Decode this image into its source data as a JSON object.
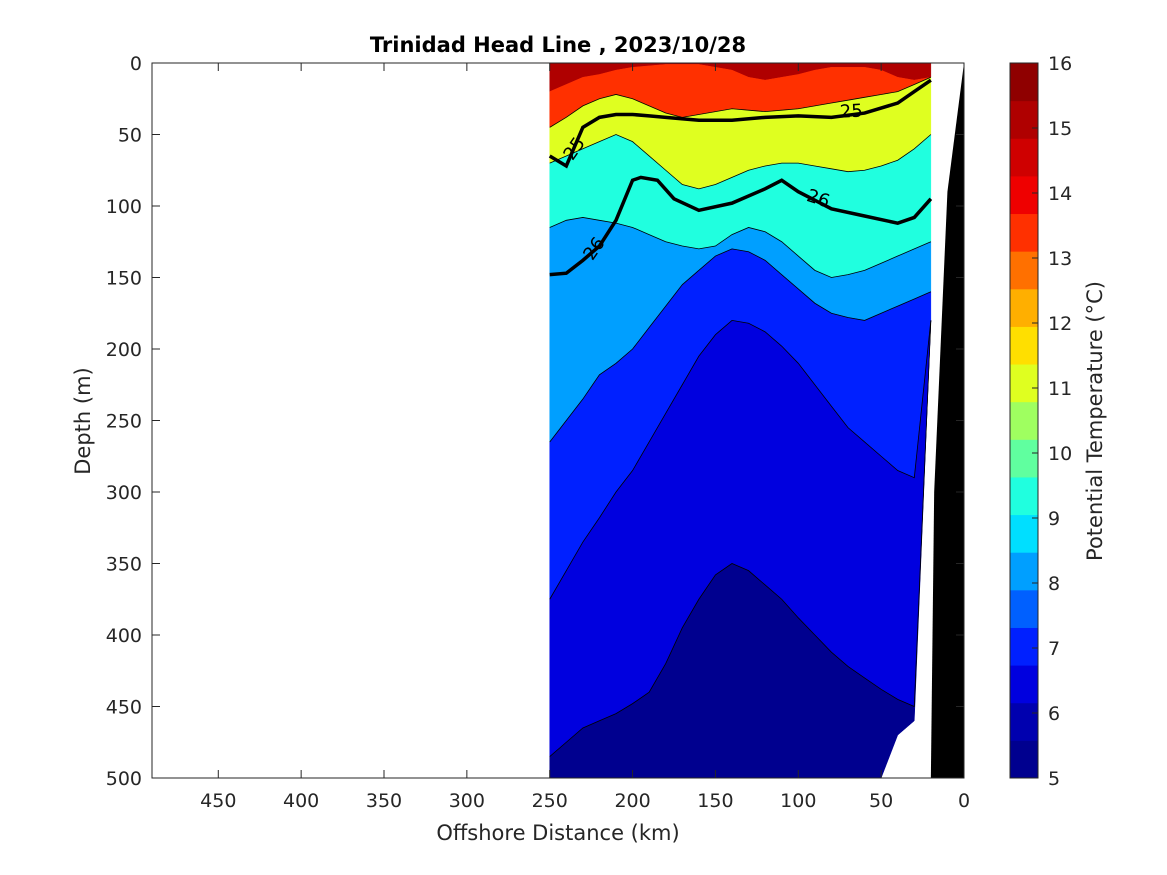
{
  "chart_data": {
    "type": "heatmap",
    "title": "Trinidad Head Line , 2023/10/28",
    "xlabel": "Offshore Distance (km)",
    "ylabel": "Depth (m)",
    "colorbar_label": "Potential Temperature (°C)",
    "x_reversed": true,
    "y_reversed": true,
    "xlim": [
      0,
      490
    ],
    "ylim": [
      0,
      500
    ],
    "xticks": [
      450,
      400,
      350,
      300,
      250,
      200,
      150,
      100,
      50,
      0
    ],
    "yticks": [
      0,
      50,
      100,
      150,
      200,
      250,
      300,
      350,
      400,
      450,
      500
    ],
    "colorbar_range": [
      5,
      16
    ],
    "colorbar_ticks": [
      5,
      6,
      7,
      8,
      9,
      10,
      11,
      12,
      13,
      14,
      15,
      16
    ],
    "colormap": [
      "#00008F",
      "#0000AF",
      "#0000DF",
      "#0020FF",
      "#0060FF",
      "#009FFF",
      "#00DFFF",
      "#20FFDF",
      "#60FF9F",
      "#9FFF60",
      "#DFFF20",
      "#FFDF00",
      "#FFAF00",
      "#FF7000",
      "#FF3000",
      "#EF0000",
      "#CF0000",
      "#AF0000",
      "#8F0000"
    ],
    "profile_distances": [
      250,
      240,
      230,
      220,
      210,
      200,
      190,
      180,
      170,
      160,
      150,
      140,
      130,
      120,
      110,
      100,
      90,
      80,
      70,
      60,
      50,
      40,
      30,
      20
    ],
    "profile_bottom_depths": [
      500,
      500,
      500,
      500,
      500,
      500,
      500,
      500,
      500,
      500,
      500,
      500,
      500,
      500,
      500,
      500,
      500,
      500,
      500,
      500,
      500,
      470,
      460,
      180
    ],
    "isotherms_depth": {
      "t14": [
        20,
        15,
        10,
        8,
        5,
        3,
        2,
        1,
        1,
        1,
        3,
        5,
        10,
        12,
        10,
        8,
        5,
        3,
        3,
        3,
        5,
        10,
        12,
        10
      ],
      "t12": [
        45,
        38,
        30,
        25,
        22,
        25,
        30,
        35,
        38,
        36,
        34,
        32,
        33,
        34,
        33,
        32,
        30,
        28,
        26,
        24,
        22,
        20,
        15,
        10
      ],
      "t10": [
        70,
        65,
        60,
        55,
        50,
        55,
        65,
        75,
        85,
        88,
        85,
        80,
        75,
        72,
        70,
        70,
        72,
        74,
        76,
        75,
        72,
        68,
        60,
        50
      ],
      "t9": [
        115,
        110,
        108,
        110,
        112,
        115,
        120,
        125,
        128,
        130,
        128,
        120,
        115,
        118,
        125,
        135,
        145,
        150,
        148,
        145,
        140,
        135,
        130,
        125
      ],
      "t8": [
        265,
        250,
        235,
        218,
        210,
        200,
        185,
        170,
        155,
        145,
        135,
        130,
        132,
        138,
        148,
        158,
        168,
        175,
        178,
        180,
        175,
        170,
        165,
        160
      ],
      "t7": [
        375,
        355,
        335,
        318,
        300,
        285,
        265,
        245,
        225,
        205,
        190,
        180,
        182,
        188,
        198,
        210,
        225,
        240,
        255,
        265,
        275,
        285,
        290,
        290
      ],
      "t6": [
        485,
        475,
        465,
        460,
        455,
        448,
        440,
        420,
        395,
        375,
        358,
        350,
        355,
        365,
        375,
        388,
        400,
        412,
        422,
        430,
        438,
        445,
        450,
        450
      ]
    },
    "contour_lines": [
      {
        "level": "25",
        "bold": true,
        "distance": [
          250,
          240,
          230,
          220,
          210,
          200,
          190,
          180,
          160,
          140,
          120,
          100,
          80,
          60,
          40,
          30,
          20
        ],
        "depth": [
          65,
          72,
          45,
          38,
          36,
          36,
          37,
          38,
          40,
          40,
          38,
          37,
          38,
          35,
          28,
          20,
          12
        ]
      },
      {
        "level": "26",
        "bold": true,
        "distance": [
          250,
          240,
          230,
          220,
          210,
          200,
          195,
          185,
          175,
          160,
          140,
          120,
          110,
          100,
          80,
          60,
          40,
          30,
          20
        ],
        "depth": [
          148,
          147,
          138,
          128,
          110,
          82,
          80,
          82,
          95,
          103,
          98,
          88,
          82,
          90,
          102,
          107,
          112,
          108,
          95
        ]
      }
    ],
    "contour_labels": [
      {
        "text": "25",
        "distance": 235,
        "depth": 60,
        "angle": -55
      },
      {
        "text": "25",
        "distance": 68,
        "depth": 34,
        "angle": -3
      },
      {
        "text": "26",
        "distance": 223,
        "depth": 130,
        "angle": -55
      },
      {
        "text": "26",
        "distance": 88,
        "depth": 95,
        "angle": 18
      }
    ]
  }
}
